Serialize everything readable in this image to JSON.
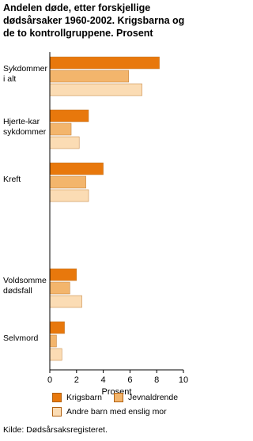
{
  "chart_data": {
    "type": "hbar",
    "title": "Andelen døde, etter forskjellige dødsårsaker 1960-2002. Krigsbarna og de to kontrollgruppene. Prosent",
    "categories": [
      "Sykdommer i alt",
      "Hjerte-kar sykdommer",
      "Kreft",
      null,
      "Voldsomme dødsfall",
      "Selvmord"
    ],
    "series": [
      {
        "name": "Krigsbarn",
        "color": "#e8780c",
        "values": [
          8.2,
          2.9,
          4.0,
          null,
          2.0,
          1.1
        ]
      },
      {
        "name": "Jevnaldrende",
        "color": "#f3b56c",
        "values": [
          5.9,
          1.6,
          2.7,
          null,
          1.5,
          0.5
        ]
      },
      {
        "name": "Andre barn med enslig mor",
        "color": "#fbdcb4",
        "values": [
          6.9,
          2.2,
          2.9,
          null,
          2.4,
          0.9
        ]
      }
    ],
    "xlabel": "Prosent",
    "xlim": [
      0,
      10
    ],
    "xticks": [
      0,
      2,
      4,
      6,
      8,
      10
    ],
    "source": "Kilde: Dødsårsaksregisteret."
  }
}
